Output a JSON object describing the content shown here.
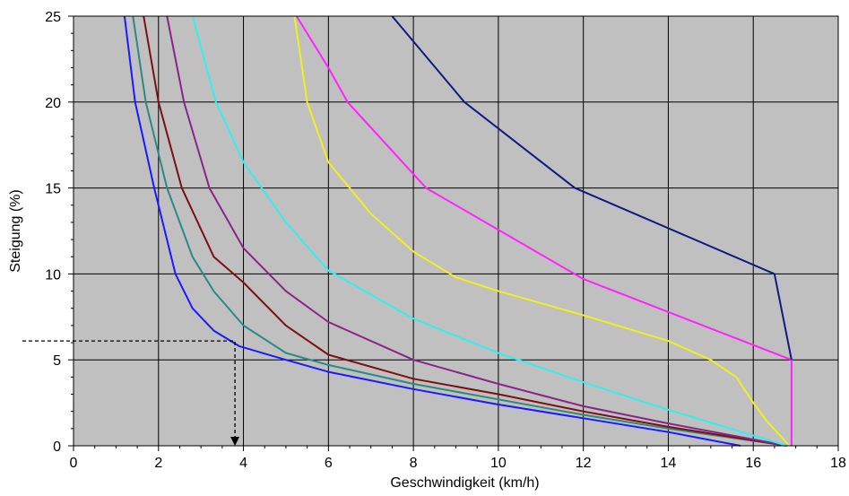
{
  "chart_data": {
    "type": "line",
    "title": "",
    "xlabel": "Geschwindigkeit (km/h)",
    "ylabel": "Steigung (%)",
    "xlim": [
      0,
      18
    ],
    "ylim": [
      0,
      25
    ],
    "x_ticks": [
      "0",
      "2",
      "4",
      "6",
      "8",
      "10",
      "12",
      "14",
      "16",
      "18"
    ],
    "y_ticks": [
      "0",
      "5",
      "10",
      "15",
      "20",
      "25"
    ],
    "grid": true,
    "plot_background": "#c0c0c0",
    "series": [
      {
        "color": "#1a1aff",
        "points": [
          [
            1.2,
            25
          ],
          [
            1.45,
            20
          ],
          [
            1.9,
            15
          ],
          [
            2.4,
            10
          ],
          [
            2.8,
            8
          ],
          [
            3.3,
            6.7
          ],
          [
            3.9,
            5.8
          ],
          [
            5,
            5
          ],
          [
            6,
            4.3
          ],
          [
            8,
            3.3
          ],
          [
            10,
            2.4
          ],
          [
            12,
            1.6
          ],
          [
            14,
            0.8
          ],
          [
            15.7,
            0
          ]
        ]
      },
      {
        "color": "#2a8a85",
        "points": [
          [
            1.4,
            25
          ],
          [
            1.7,
            20
          ],
          [
            2.2,
            15
          ],
          [
            2.8,
            11
          ],
          [
            3.3,
            9
          ],
          [
            4,
            7
          ],
          [
            5,
            5.4
          ],
          [
            6,
            4.7
          ],
          [
            8,
            3.6
          ],
          [
            10,
            2.7
          ],
          [
            12,
            1.8
          ],
          [
            14,
            1
          ],
          [
            16.8,
            0
          ]
        ]
      },
      {
        "color": "#7a1010",
        "points": [
          [
            1.65,
            25
          ],
          [
            2.0,
            20
          ],
          [
            2.55,
            15
          ],
          [
            3.3,
            11
          ],
          [
            4,
            9.5
          ],
          [
            5,
            7
          ],
          [
            6,
            5.3
          ],
          [
            8,
            3.9
          ],
          [
            10,
            3
          ],
          [
            12,
            2
          ],
          [
            14,
            1.1
          ],
          [
            16.8,
            0
          ]
        ]
      },
      {
        "color": "#8b2388",
        "points": [
          [
            2.2,
            25
          ],
          [
            2.6,
            20
          ],
          [
            3.2,
            15
          ],
          [
            4,
            11.5
          ],
          [
            5,
            9
          ],
          [
            6,
            7.2
          ],
          [
            8,
            5
          ],
          [
            10,
            3.6
          ],
          [
            12,
            2.3
          ],
          [
            14,
            1.3
          ],
          [
            16.8,
            0
          ]
        ]
      },
      {
        "color": "#33eeee",
        "points": [
          [
            2.8,
            25
          ],
          [
            3.35,
            20
          ],
          [
            4,
            16.5
          ],
          [
            5,
            13
          ],
          [
            6,
            10.2
          ],
          [
            8,
            7.4
          ],
          [
            10,
            5.4
          ],
          [
            12,
            3.7
          ],
          [
            14,
            2.1
          ],
          [
            16.8,
            0
          ]
        ]
      },
      {
        "color": "#f0f020",
        "points": [
          [
            5.2,
            25
          ],
          [
            5.5,
            20
          ],
          [
            6,
            16.5
          ],
          [
            7,
            13.5
          ],
          [
            8,
            11.3
          ],
          [
            9,
            9.8
          ],
          [
            10,
            9
          ],
          [
            12,
            7.6
          ],
          [
            14,
            6.1
          ],
          [
            15,
            5
          ],
          [
            15.6,
            4
          ],
          [
            16,
            2.5
          ],
          [
            16.3,
            1.5
          ],
          [
            16.85,
            0
          ]
        ]
      },
      {
        "color": "#ff22ff",
        "points": [
          [
            5.25,
            25
          ],
          [
            6,
            22
          ],
          [
            6.45,
            20
          ],
          [
            8.3,
            15
          ],
          [
            12,
            9.7
          ],
          [
            16.9,
            5
          ],
          [
            16.9,
            0
          ]
        ]
      },
      {
        "color": "#101a80",
        "points": [
          [
            7.5,
            25
          ],
          [
            9.2,
            20
          ],
          [
            11.8,
            15
          ],
          [
            16.5,
            10
          ],
          [
            16.9,
            5
          ]
        ]
      }
    ],
    "annotation": {
      "from": [
        0,
        6.1
      ],
      "corner": [
        3.8,
        6.1
      ],
      "to": [
        3.8,
        0
      ],
      "style": "dashed-arrow"
    }
  }
}
